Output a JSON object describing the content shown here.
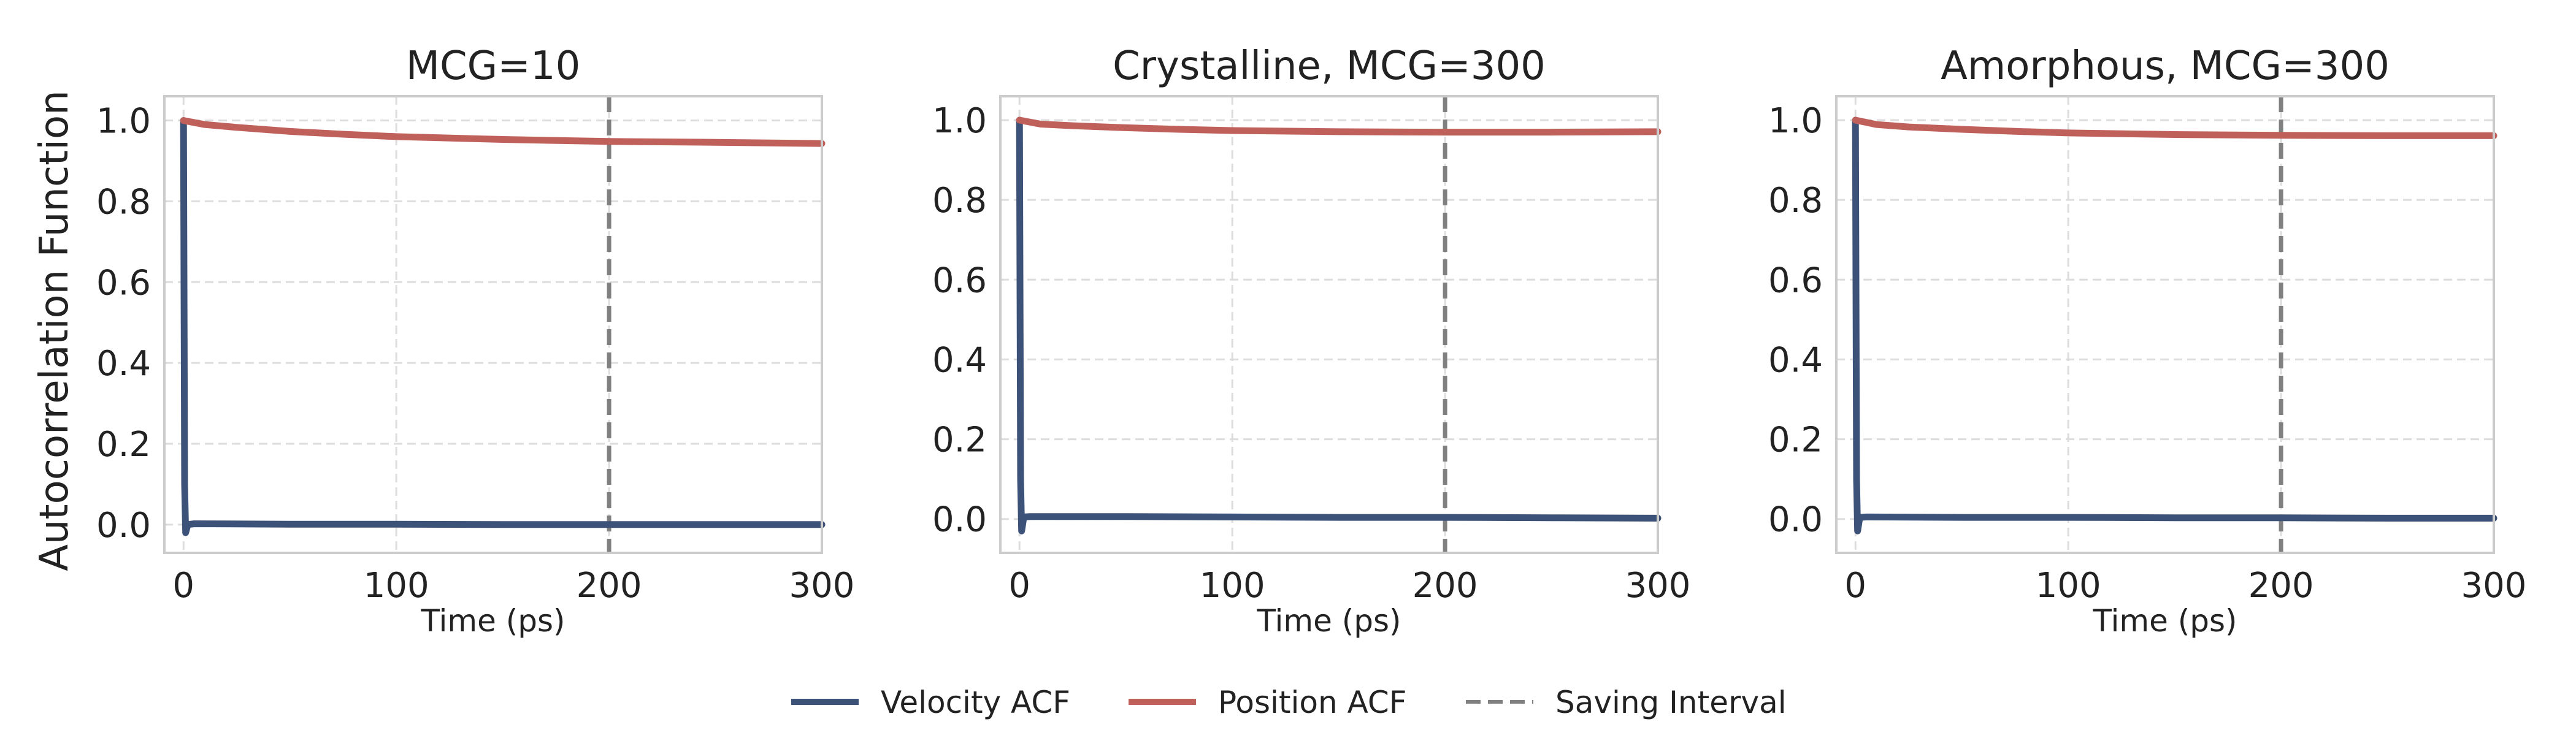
{
  "figure": {
    "legend": {
      "placement": "bottom-center",
      "items": [
        {
          "label": "Velocity ACF",
          "color": "#3d5278",
          "style": "solid"
        },
        {
          "label": "Position ACF",
          "color": "#c0605a",
          "style": "solid"
        },
        {
          "label": "Saving Interval",
          "color": "#808080",
          "style": "dashed"
        }
      ]
    }
  },
  "chart_data": [
    {
      "type": "line",
      "title": "MCG=10",
      "xlabel": "Time (ps)",
      "ylabel": "Autocorrelation Function",
      "xlim": [
        -9,
        300
      ],
      "ylim": [
        -0.07,
        1.06
      ],
      "xticks": [
        "0",
        "100",
        "200",
        "300"
      ],
      "xtick_values": [
        0,
        100,
        200,
        300
      ],
      "yticks": [
        "0.0",
        "0.2",
        "0.4",
        "0.6",
        "0.8",
        "1.0"
      ],
      "ytick_values": [
        0.0,
        0.2,
        0.4,
        0.6,
        0.8,
        1.0
      ],
      "grid": true,
      "vline": {
        "x": 200,
        "series": "Saving Interval"
      },
      "series": [
        {
          "name": "Velocity ACF",
          "x": [
            0,
            0.5,
            1,
            2,
            5,
            50,
            100,
            150,
            200,
            250,
            300
          ],
          "y": [
            1.0,
            0.1,
            -0.02,
            0.0,
            0.002,
            0.001,
            0.001,
            0.0,
            0.0,
            0.0,
            0.0
          ]
        },
        {
          "name": "Position ACF",
          "x": [
            0,
            10,
            25,
            50,
            75,
            100,
            150,
            200,
            250,
            300
          ],
          "y": [
            1.0,
            0.99,
            0.983,
            0.973,
            0.966,
            0.96,
            0.953,
            0.948,
            0.946,
            0.943
          ]
        }
      ]
    },
    {
      "type": "line",
      "title": "Crystalline, MCG=300",
      "xlabel": "Time (ps)",
      "ylabel": "",
      "xlim": [
        -9,
        300
      ],
      "ylim": [
        -0.085,
        1.06
      ],
      "xticks": [
        "0",
        "100",
        "200",
        "300"
      ],
      "xtick_values": [
        0,
        100,
        200,
        300
      ],
      "yticks": [
        "0.0",
        "0.2",
        "0.4",
        "0.6",
        "0.8",
        "1.0"
      ],
      "ytick_values": [
        0.0,
        0.2,
        0.4,
        0.6,
        0.8,
        1.0
      ],
      "grid": true,
      "vline": {
        "x": 200,
        "series": "Saving Interval"
      },
      "series": [
        {
          "name": "Velocity ACF",
          "x": [
            0,
            0.5,
            1,
            2,
            5,
            50,
            100,
            150,
            200,
            250,
            300
          ],
          "y": [
            1.0,
            0.1,
            -0.03,
            0.005,
            0.006,
            0.006,
            0.005,
            0.004,
            0.004,
            0.003,
            0.002
          ]
        },
        {
          "name": "Position ACF",
          "x": [
            0,
            10,
            25,
            50,
            75,
            100,
            150,
            200,
            250,
            300
          ],
          "y": [
            1.0,
            0.99,
            0.986,
            0.981,
            0.977,
            0.974,
            0.971,
            0.97,
            0.97,
            0.971
          ]
        }
      ]
    },
    {
      "type": "line",
      "title": "Amorphous, MCG=300",
      "xlabel": "Time (ps)",
      "ylabel": "",
      "xlim": [
        -9,
        300
      ],
      "ylim": [
        -0.085,
        1.06
      ],
      "xticks": [
        "0",
        "100",
        "200",
        "300"
      ],
      "xtick_values": [
        0,
        100,
        200,
        300
      ],
      "yticks": [
        "0.0",
        "0.2",
        "0.4",
        "0.6",
        "0.8",
        "1.0"
      ],
      "ytick_values": [
        0.0,
        0.2,
        0.4,
        0.6,
        0.8,
        1.0
      ],
      "grid": true,
      "vline": {
        "x": 200,
        "series": "Saving Interval"
      },
      "series": [
        {
          "name": "Velocity ACF",
          "x": [
            0,
            0.5,
            1,
            2,
            5,
            50,
            100,
            150,
            200,
            250,
            300
          ],
          "y": [
            1.0,
            0.1,
            -0.03,
            0.004,
            0.005,
            0.004,
            0.004,
            0.003,
            0.003,
            0.002,
            0.002
          ]
        },
        {
          "name": "Position ACF",
          "x": [
            0,
            10,
            25,
            50,
            75,
            100,
            150,
            200,
            250,
            300
          ],
          "y": [
            1.0,
            0.989,
            0.983,
            0.977,
            0.972,
            0.968,
            0.964,
            0.962,
            0.961,
            0.961
          ]
        }
      ]
    }
  ]
}
